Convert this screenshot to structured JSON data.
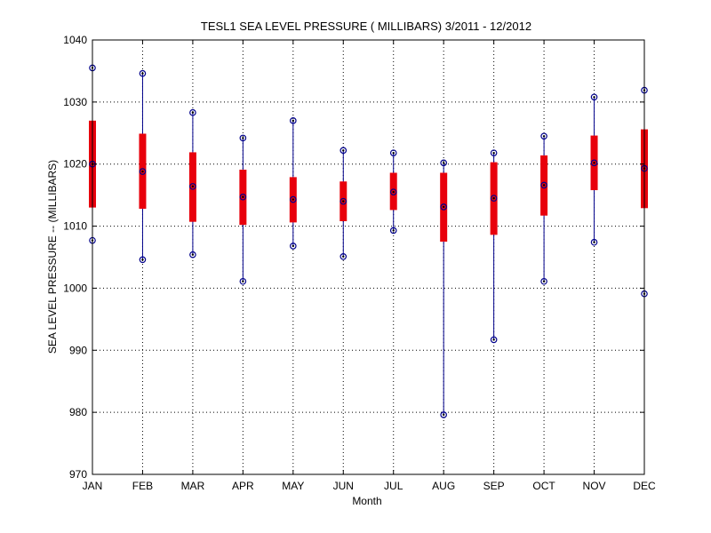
{
  "chart_data": {
    "type": "box",
    "title": "TESL1  SEA LEVEL PRESSURE ( MILLIBARS) 3/2011 - 12/2012",
    "xlabel": "Month",
    "ylabel": "SEA LEVEL PRESSURE -- (MILLIBARS)",
    "ylim": [
      970,
      1040
    ],
    "yticks": [
      "970",
      "980",
      "990",
      "1000",
      "1010",
      "1020",
      "1030",
      "1040"
    ],
    "categories": [
      "JAN",
      "FEB",
      "MAR",
      "APR",
      "MAY",
      "JUN",
      "JUL",
      "AUG",
      "SEP",
      "OCT",
      "NOV",
      "DEC"
    ],
    "grid": true,
    "colors": {
      "box": "#e8000c",
      "whisker": "#00008b",
      "marker": "#000000",
      "axis": "#000000"
    },
    "stats": [
      {
        "month": "JAN",
        "min": 1007.7,
        "q1": 1013.0,
        "median": 1020.0,
        "q3": 1027.0,
        "max": 1035.5
      },
      {
        "month": "FEB",
        "min": 1004.6,
        "q1": 1012.8,
        "median": 1018.8,
        "q3": 1024.9,
        "max": 1034.6
      },
      {
        "month": "MAR",
        "min": 1005.4,
        "q1": 1010.7,
        "median": 1016.4,
        "q3": 1021.9,
        "max": 1028.3
      },
      {
        "month": "APR",
        "min": 1001.1,
        "q1": 1010.2,
        "median": 1014.7,
        "q3": 1019.1,
        "max": 1024.2
      },
      {
        "month": "MAY",
        "min": 1006.8,
        "q1": 1010.6,
        "median": 1014.3,
        "q3": 1017.9,
        "max": 1027.0
      },
      {
        "month": "JUN",
        "min": 1005.1,
        "q1": 1010.8,
        "median": 1014.0,
        "q3": 1017.2,
        "max": 1022.2
      },
      {
        "month": "JUL",
        "min": 1009.3,
        "q1": 1012.6,
        "median": 1015.5,
        "q3": 1018.6,
        "max": 1021.8
      },
      {
        "month": "AUG",
        "min": 979.6,
        "q1": 1007.5,
        "median": 1013.1,
        "q3": 1018.6,
        "max": 1020.2
      },
      {
        "month": "SEP",
        "min": 991.7,
        "q1": 1008.6,
        "median": 1014.5,
        "q3": 1020.3,
        "max": 1021.8
      },
      {
        "month": "OCT",
        "min": 1001.1,
        "q1": 1011.7,
        "median": 1016.6,
        "q3": 1021.4,
        "max": 1024.5
      },
      {
        "month": "NOV",
        "min": 1007.4,
        "q1": 1015.8,
        "median": 1020.2,
        "q3": 1024.6,
        "max": 1030.8
      },
      {
        "month": "DEC",
        "min": 999.1,
        "q1": 1012.9,
        "median": 1019.3,
        "q3": 1025.6,
        "max": 1031.9
      }
    ]
  }
}
